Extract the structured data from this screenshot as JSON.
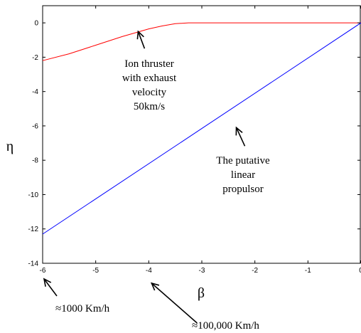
{
  "chart_data": {
    "type": "line",
    "title": "",
    "xlabel": "β",
    "ylabel": "η",
    "xlim": [
      -6,
      0
    ],
    "ylim": [
      -14,
      1
    ],
    "x_ticks": [
      -6,
      -5,
      -4,
      -3,
      -2,
      -1,
      0
    ],
    "x_tick_labels": [
      "-6",
      "-5",
      "-4",
      "-3",
      "-2",
      "-1",
      "0"
    ],
    "y_ticks": [
      0,
      -2,
      -4,
      -6,
      -8,
      -10,
      -12,
      -14
    ],
    "y_tick_labels": [
      "0",
      "-2",
      "-4",
      "-6",
      "-8",
      "-10",
      "-12",
      "-14"
    ],
    "grid": false,
    "legend": "none",
    "series": [
      {
        "color": "#ff0000",
        "x": [
          -6,
          -5.5,
          -5,
          -4.5,
          -4,
          -3.75,
          -3.5,
          -3.25,
          -3,
          -2,
          -1,
          0
        ],
        "y": [
          -2.2,
          -1.8,
          -1.3,
          -0.8,
          -0.35,
          -0.18,
          -0.05,
          0,
          0,
          0,
          0,
          0
        ]
      },
      {
        "color": "#0000ff",
        "x": [
          -6,
          -3,
          0
        ],
        "y": [
          -12.3,
          -6.15,
          0
        ]
      }
    ],
    "annotations": [
      {
        "lines": [
          "Ion thruster",
          "with exhaust",
          "velocity",
          "50km/s"
        ],
        "arrow_tip": [
          -4.2,
          -0.5
        ]
      },
      {
        "lines": [
          "The putative",
          "linear",
          "propulsor"
        ],
        "arrow_tip": [
          -2.35,
          -6.1
        ]
      }
    ],
    "below_axis_annotations": [
      {
        "text": "≈1000 Km/h",
        "arrow_tip_x": -6
      },
      {
        "text": "≈100,000 Km/h",
        "arrow_tip_x": -4
      }
    ]
  }
}
